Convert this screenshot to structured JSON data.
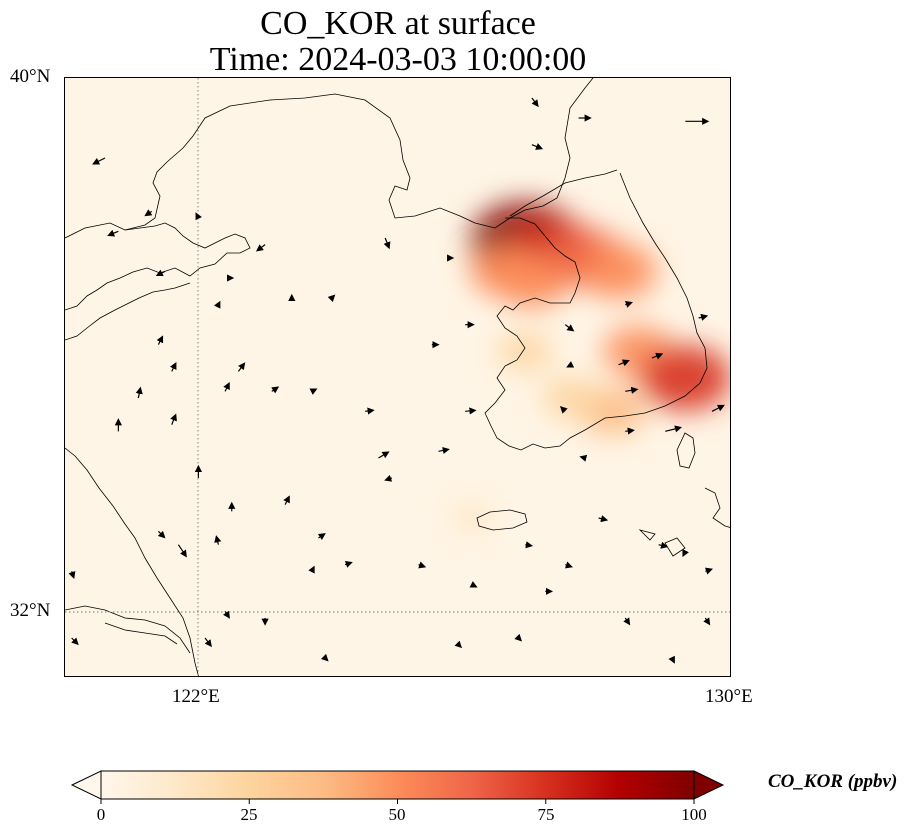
{
  "title": {
    "line1": "CO_KOR at surface",
    "line2": "Time: 2024-03-03 10:00:00"
  },
  "map": {
    "projection": "PlateCarree",
    "extent": {
      "lon_min": 120.0,
      "lon_max": 130.0,
      "lat_min": 31.0,
      "lat_max": 40.0
    },
    "gridlines": [
      {
        "type": "longitude",
        "value": 122
      },
      {
        "type": "latitude",
        "value": 32
      }
    ],
    "lat_ticks": [
      "40°N",
      "32°N"
    ],
    "lon_ticks": [
      "122°E",
      "130°E"
    ],
    "background_color": "#fff5e6",
    "coastline_color": "#000000"
  },
  "colorbar": {
    "label": "CO_KOR (ppbv)",
    "colormap": "OrRd",
    "min": 0,
    "max": 100,
    "ticks": [
      "0",
      "25",
      "50",
      "75",
      "100"
    ],
    "extend": "both",
    "colors": [
      "#fff7ec",
      "#fee8c8",
      "#fdd49e",
      "#fdbb84",
      "#fc8d59",
      "#ef6548",
      "#d7301f",
      "#b30000",
      "#7f0000"
    ]
  },
  "chart_data": {
    "type": "heatmap",
    "variable": "CO_KOR",
    "units": "ppbv",
    "concentration_hotspots": [
      {
        "lon": 126.9,
        "lat": 37.55,
        "value": 100
      },
      {
        "lon": 127.3,
        "lat": 37.4,
        "value": 80
      },
      {
        "lon": 127.8,
        "lat": 37.3,
        "value": 60
      },
      {
        "lon": 128.3,
        "lat": 37.1,
        "value": 55
      },
      {
        "lon": 127.0,
        "lat": 36.95,
        "value": 50
      },
      {
        "lon": 126.6,
        "lat": 37.1,
        "value": 45
      },
      {
        "lon": 128.6,
        "lat": 35.9,
        "value": 45
      },
      {
        "lon": 129.3,
        "lat": 35.5,
        "value": 75
      },
      {
        "lon": 128.2,
        "lat": 35.0,
        "value": 40
      },
      {
        "lon": 127.6,
        "lat": 35.2,
        "value": 28
      },
      {
        "lon": 126.9,
        "lat": 35.9,
        "value": 22
      },
      {
        "lon": 126.1,
        "lat": 33.4,
        "value": 8
      }
    ],
    "wind_vectors": [
      {
        "lon": 127.0,
        "lat": 39.7,
        "u": 0.3,
        "v": -0.4
      },
      {
        "lon": 127.0,
        "lat": 39.0,
        "u": 0.5,
        "v": -0.2
      },
      {
        "lon": 129.3,
        "lat": 39.35,
        "u": 1.2,
        "v": 0.0
      },
      {
        "lon": 130.0,
        "lat": 39.35,
        "u": 1.5,
        "v": 0.05
      },
      {
        "lon": 127.7,
        "lat": 39.4,
        "u": 0.6,
        "v": 0.0
      },
      {
        "lon": 120.6,
        "lat": 38.8,
        "u": -0.6,
        "v": -0.3
      },
      {
        "lon": 121.3,
        "lat": 38.0,
        "u": -0.3,
        "v": -0.2
      },
      {
        "lon": 120.8,
        "lat": 37.7,
        "u": -0.5,
        "v": -0.2
      },
      {
        "lon": 122.0,
        "lat": 37.9,
        "u": -0.1,
        "v": 0.2
      },
      {
        "lon": 121.5,
        "lat": 37.1,
        "u": -0.4,
        "v": -0.2
      },
      {
        "lon": 122.5,
        "lat": 37.0,
        "u": 0.0,
        "v": 0.0
      },
      {
        "lon": 123.0,
        "lat": 37.5,
        "u": -0.4,
        "v": -0.3
      },
      {
        "lon": 124.8,
        "lat": 37.6,
        "u": 0.2,
        "v": -0.5
      },
      {
        "lon": 125.8,
        "lat": 37.3,
        "u": 0.0,
        "v": 0.0
      },
      {
        "lon": 126.0,
        "lat": 36.3,
        "u": 0.4,
        "v": 0.0
      },
      {
        "lon": 127.5,
        "lat": 36.3,
        "u": 0.4,
        "v": -0.3
      },
      {
        "lon": 128.4,
        "lat": 36.6,
        "u": 0.3,
        "v": 0.1
      },
      {
        "lon": 129.5,
        "lat": 36.4,
        "u": 0.4,
        "v": 0.1
      },
      {
        "lon": 128.8,
        "lat": 35.8,
        "u": 0.5,
        "v": 0.2
      },
      {
        "lon": 128.3,
        "lat": 35.7,
        "u": 0.5,
        "v": 0.2
      },
      {
        "lon": 127.6,
        "lat": 35.7,
        "u": -0.2,
        "v": -0.1
      },
      {
        "lon": 128.4,
        "lat": 35.3,
        "u": 0.6,
        "v": 0.1
      },
      {
        "lon": 129.7,
        "lat": 35.0,
        "u": 0.6,
        "v": 0.3
      },
      {
        "lon": 129.0,
        "lat": 34.7,
        "u": 0.8,
        "v": 0.2
      },
      {
        "lon": 128.4,
        "lat": 34.7,
        "u": 0.4,
        "v": 0.05
      },
      {
        "lon": 127.5,
        "lat": 35.0,
        "u": -0.2,
        "v": 0.2
      },
      {
        "lon": 127.8,
        "lat": 34.3,
        "u": -0.2,
        "v": 0.05
      },
      {
        "lon": 126.0,
        "lat": 35.0,
        "u": 0.5,
        "v": 0.05
      },
      {
        "lon": 125.6,
        "lat": 34.4,
        "u": 0.5,
        "v": 0.1
      },
      {
        "lon": 124.7,
        "lat": 34.3,
        "u": 0.5,
        "v": 0.3
      },
      {
        "lon": 124.9,
        "lat": 34.0,
        "u": -0.3,
        "v": -0.1
      },
      {
        "lon": 123.7,
        "lat": 35.3,
        "u": 0.2,
        "v": 0.1
      },
      {
        "lon": 124.5,
        "lat": 35.0,
        "u": 0.4,
        "v": 0.05
      },
      {
        "lon": 125.5,
        "lat": 36.0,
        "u": 0.3,
        "v": 0.0
      },
      {
        "lon": 124.0,
        "lat": 36.7,
        "u": 0.1,
        "v": 0.1
      },
      {
        "lon": 123.4,
        "lat": 36.7,
        "u": 0.0,
        "v": 0.1
      },
      {
        "lon": 122.3,
        "lat": 36.6,
        "u": 0.05,
        "v": 0.1
      },
      {
        "lon": 121.4,
        "lat": 36.0,
        "u": 0.2,
        "v": 0.4
      },
      {
        "lon": 121.6,
        "lat": 35.6,
        "u": 0.2,
        "v": 0.4
      },
      {
        "lon": 122.4,
        "lat": 35.3,
        "u": 0.2,
        "v": 0.4
      },
      {
        "lon": 121.1,
        "lat": 35.2,
        "u": 0.1,
        "v": 0.5
      },
      {
        "lon": 121.6,
        "lat": 34.8,
        "u": 0.2,
        "v": 0.5
      },
      {
        "lon": 120.8,
        "lat": 34.7,
        "u": 0.0,
        "v": 0.6
      },
      {
        "lon": 122.6,
        "lat": 35.6,
        "u": 0.3,
        "v": 0.4
      },
      {
        "lon": 123.1,
        "lat": 35.3,
        "u": 0.3,
        "v": 0.2
      },
      {
        "lon": 122.0,
        "lat": 34.0,
        "u": 0.0,
        "v": 0.6
      },
      {
        "lon": 122.5,
        "lat": 33.5,
        "u": 0.0,
        "v": 0.4
      },
      {
        "lon": 123.3,
        "lat": 33.6,
        "u": 0.2,
        "v": 0.4
      },
      {
        "lon": 123.8,
        "lat": 33.1,
        "u": 0.3,
        "v": 0.2
      },
      {
        "lon": 124.2,
        "lat": 32.7,
        "u": 0.3,
        "v": 0.1
      },
      {
        "lon": 123.7,
        "lat": 32.6,
        "u": 0.1,
        "v": 0.2
      },
      {
        "lon": 121.7,
        "lat": 33.0,
        "u": 0.4,
        "v": -0.6
      },
      {
        "lon": 121.4,
        "lat": 33.2,
        "u": 0.3,
        "v": -0.3
      },
      {
        "lon": 122.3,
        "lat": 33.0,
        "u": -0.1,
        "v": 0.4
      },
      {
        "lon": 120.1,
        "lat": 32.6,
        "u": 0.1,
        "v": -0.3
      },
      {
        "lon": 122.4,
        "lat": 32.0,
        "u": 0.2,
        "v": -0.3
      },
      {
        "lon": 123.0,
        "lat": 31.9,
        "u": 0.0,
        "v": -0.3
      },
      {
        "lon": 120.1,
        "lat": 31.6,
        "u": 0.3,
        "v": -0.3
      },
      {
        "lon": 122.1,
        "lat": 31.6,
        "u": 0.3,
        "v": -0.4
      },
      {
        "lon": 123.9,
        "lat": 31.3,
        "u": 0.1,
        "v": -0.1
      },
      {
        "lon": 125.3,
        "lat": 32.7,
        "u": 0.3,
        "v": -0.1
      },
      {
        "lon": 126.1,
        "lat": 32.4,
        "u": 0.2,
        "v": -0.1
      },
      {
        "lon": 127.2,
        "lat": 32.3,
        "u": 0.3,
        "v": 0.0
      },
      {
        "lon": 128.4,
        "lat": 31.9,
        "u": 0.2,
        "v": -0.3
      },
      {
        "lon": 129.6,
        "lat": 31.9,
        "u": 0.2,
        "v": -0.3
      },
      {
        "lon": 129.1,
        "lat": 31.3,
        "u": 0.1,
        "v": -0.2
      },
      {
        "lon": 127.5,
        "lat": 32.7,
        "u": 0.3,
        "v": -0.1
      },
      {
        "lon": 128.0,
        "lat": 33.4,
        "u": 0.4,
        "v": -0.1
      },
      {
        "lon": 128.9,
        "lat": 33.0,
        "u": 0.4,
        "v": -0.1
      },
      {
        "lon": 129.3,
        "lat": 32.9,
        "u": -0.1,
        "v": -0.2
      },
      {
        "lon": 129.6,
        "lat": 32.6,
        "u": 0.3,
        "v": 0.1
      },
      {
        "lon": 126.9,
        "lat": 33.0,
        "u": 0.3,
        "v": -0.05
      },
      {
        "lon": 126.8,
        "lat": 31.6,
        "u": 0.1,
        "v": -0.1
      },
      {
        "lon": 125.9,
        "lat": 31.5,
        "u": 0.1,
        "v": -0.1
      }
    ]
  }
}
